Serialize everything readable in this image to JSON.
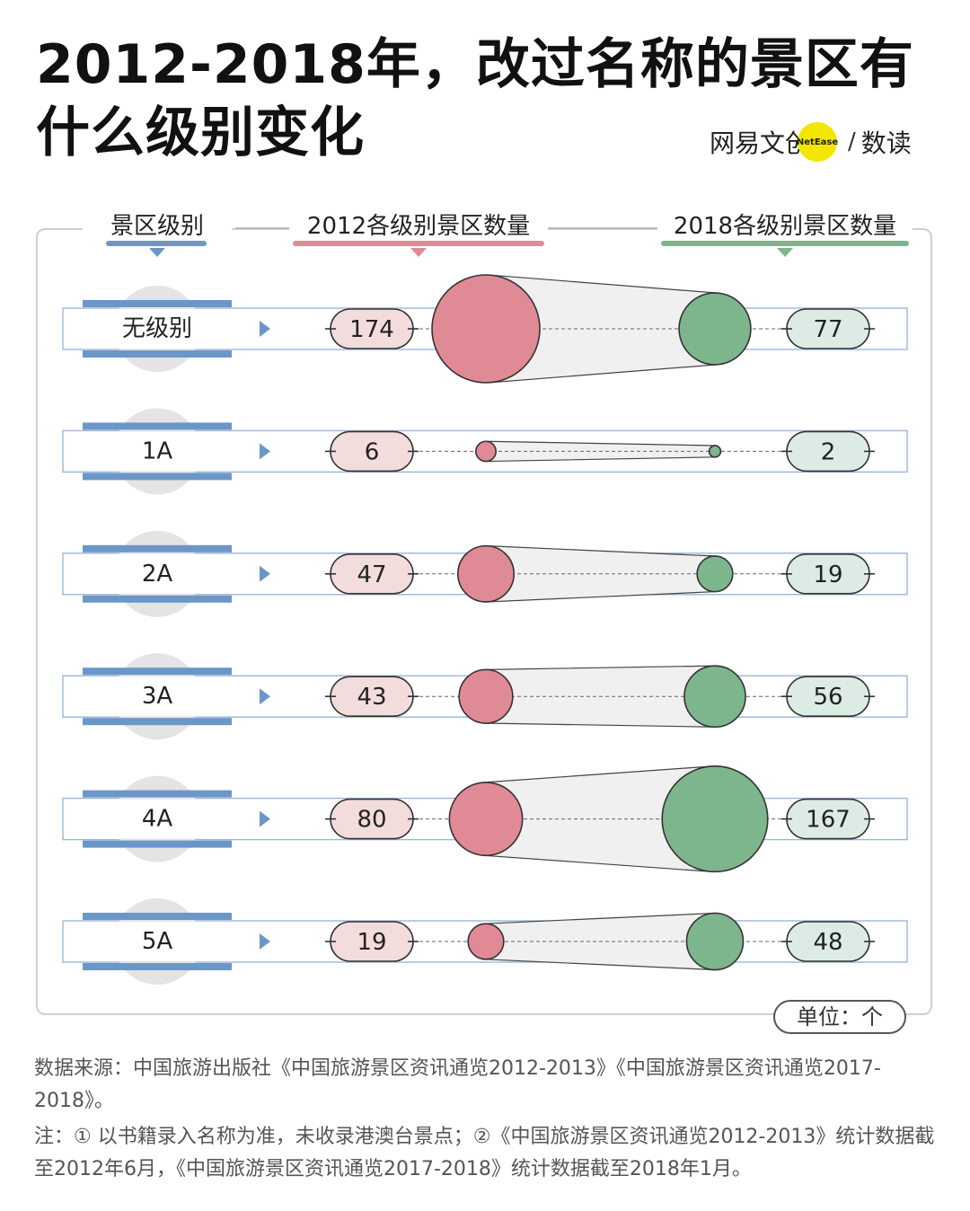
{
  "title": "2012-2018年，改过名称的景区有什么级别变化",
  "brand": {
    "left": "网易文创",
    "badge": "NetEase",
    "right": "数读"
  },
  "chart_data": {
    "type": "bubble",
    "title": "2012-2018年，改过名称的景区有什么级别变化",
    "column_headers": {
      "level": "景区级别",
      "y2012": "2012各级别景区数量",
      "y2018": "2018各级别景区数量"
    },
    "categories": [
      "无级别",
      "1A",
      "2A",
      "3A",
      "4A",
      "5A"
    ],
    "series": [
      {
        "name": "2012各级别景区数量",
        "values": [
          174,
          6,
          47,
          43,
          80,
          19
        ]
      },
      {
        "name": "2018各级别景区数量",
        "values": [
          77,
          2,
          19,
          56,
          167,
          48
        ]
      }
    ],
    "unit": "单位：个"
  },
  "colors": {
    "y2012": "#e08a96",
    "y2012_pill": "#f3dcdc",
    "y2018": "#7db58c",
    "y2018_pill": "#dcece4",
    "level": "#6b97c8"
  },
  "source": "数据来源：中国旅游出版社《中国旅游景区资讯通览2012-2013》《中国旅游景区资讯通览2017-2018》。",
  "note": "注：① 以书籍录入名称为准，未收录港澳台景点；②《中国旅游景区资讯通览2012-2013》统计数据截至2012年6月，《中国旅游景区资讯通览2017-2018》统计数据截至2018年1月。"
}
